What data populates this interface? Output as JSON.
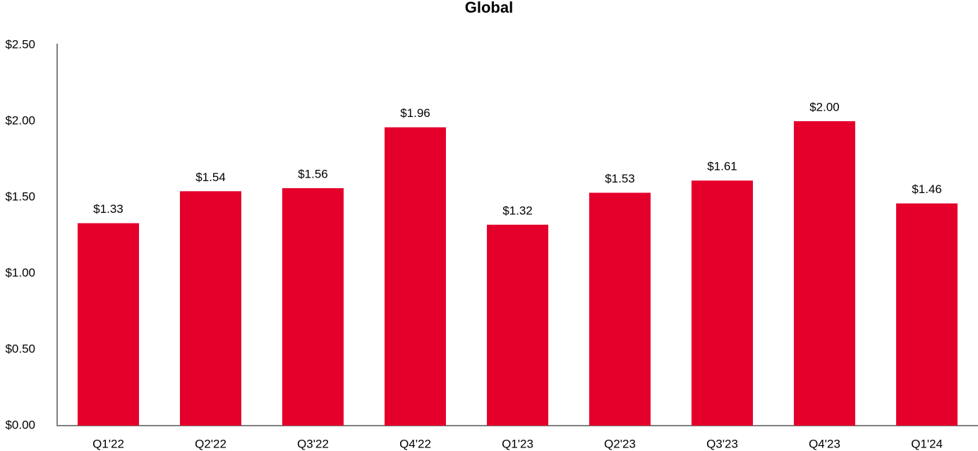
{
  "chart_data": {
    "type": "bar",
    "title": "Global",
    "categories": [
      "Q1'22",
      "Q2'22",
      "Q3'22",
      "Q4'22",
      "Q1'23",
      "Q2'23",
      "Q3'23",
      "Q4'23",
      "Q1'24"
    ],
    "values": [
      1.33,
      1.54,
      1.56,
      1.96,
      1.32,
      1.53,
      1.61,
      2.0,
      1.46
    ],
    "value_labels": [
      "$1.33",
      "$1.54",
      "$1.56",
      "$1.96",
      "$1.32",
      "$1.53",
      "$1.61",
      "$2.00",
      "$1.46"
    ],
    "color": "#e4002b",
    "ylim": [
      0,
      2.5
    ],
    "yticks": [
      {
        "value": 0,
        "label": "$0.00"
      },
      {
        "value": 0.5,
        "label": "$0.50"
      },
      {
        "value": 1,
        "label": "$1.00"
      },
      {
        "value": 1.5,
        "label": "$1.50"
      },
      {
        "value": 2,
        "label": "$2.00"
      },
      {
        "value": 2.5,
        "label": "$2.50"
      }
    ],
    "grid": false
  }
}
